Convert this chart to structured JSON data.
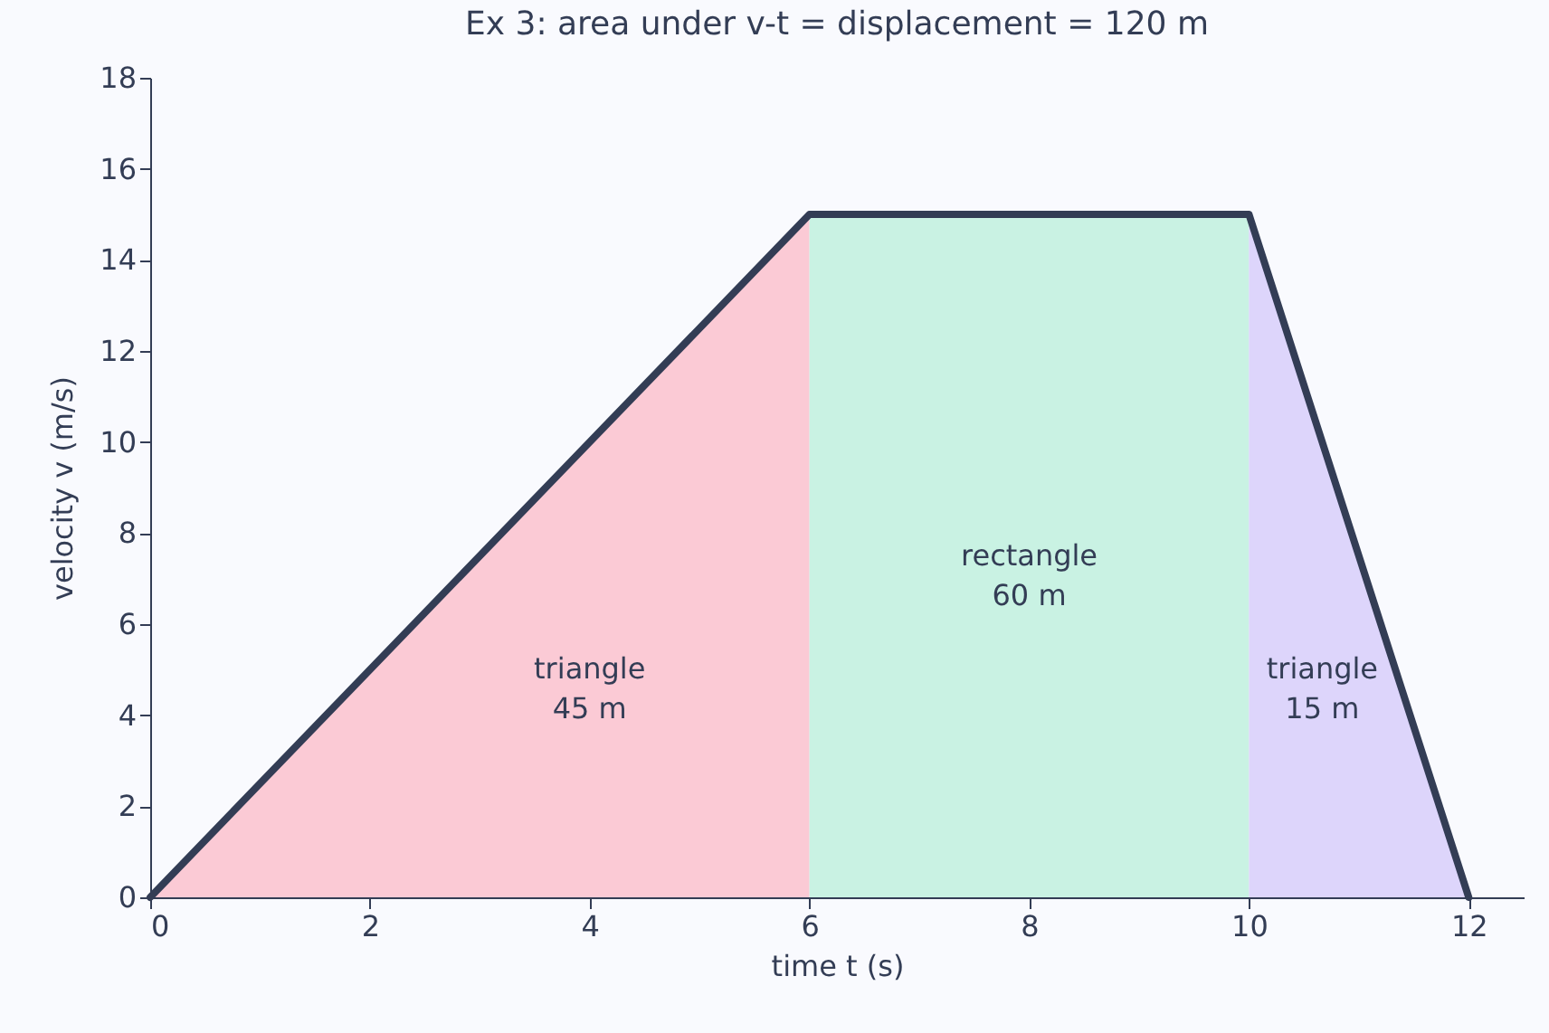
{
  "chart_data": {
    "type": "area",
    "title": "Ex 3: area under v-t = displacement = 120 m",
    "xlabel": "time t (s)",
    "ylabel": "velocity v (m/s)",
    "xlim": [
      0,
      12.5
    ],
    "xticks": [
      0,
      2,
      4,
      6,
      8,
      10,
      12
    ],
    "ylim": [
      0,
      18
    ],
    "yticks": [
      0,
      2,
      4,
      6,
      8,
      10,
      12,
      14,
      16,
      18
    ],
    "series": [
      {
        "x": [
          0,
          6
        ],
        "values": [
          0,
          15
        ],
        "color": "#fbcad5"
      },
      {
        "x": [
          6,
          10
        ],
        "values": [
          15,
          15
        ],
        "color": "#c9f2e3"
      },
      {
        "x": [
          10,
          12
        ],
        "values": [
          15,
          0
        ],
        "color": "#ddd5fb"
      },
      {
        "type": "line",
        "x": [
          0,
          6,
          10,
          12
        ],
        "values": [
          0,
          15,
          15,
          0
        ],
        "color": "#333d55"
      }
    ],
    "annotations": [
      "triangle\n45 m",
      "rectangle\n60 m",
      "triangle\n15 m"
    ]
  }
}
